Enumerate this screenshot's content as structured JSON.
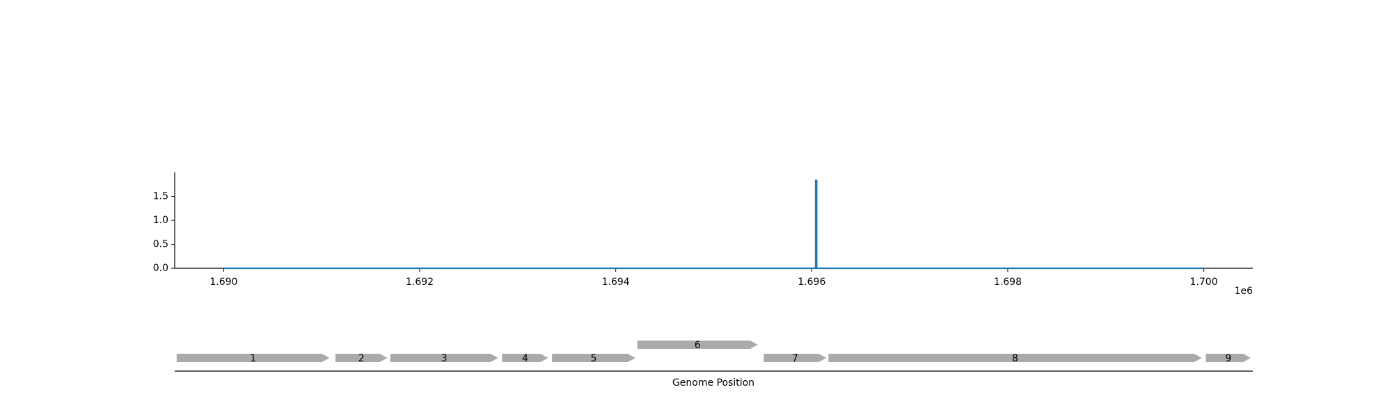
{
  "chart_data": [
    {
      "type": "line",
      "title": "",
      "xlabel": "",
      "ylabel": "",
      "x_offset_label": "1e6",
      "xlim": [
        1689500,
        1700500
      ],
      "ylim": [
        0,
        2.0
      ],
      "x_ticks": [
        1690000,
        1692000,
        1694000,
        1696000,
        1698000,
        1700000
      ],
      "x_tick_labels": [
        "1.690",
        "1.692",
        "1.694",
        "1.696",
        "1.698",
        "1.700"
      ],
      "y_ticks": [
        0,
        0.5,
        1.0,
        1.5
      ],
      "y_tick_labels": [
        "0.0",
        "0.5",
        "1.0",
        "1.5"
      ],
      "grid": false,
      "colors": {
        "line": "#1f77b4"
      },
      "series": [
        {
          "points": [
            [
              1690000,
              0
            ],
            [
              1696040,
              0
            ],
            [
              1696040,
              1.83
            ],
            [
              1696050,
              1.83
            ],
            [
              1696050,
              0
            ],
            [
              1700000,
              0
            ]
          ]
        }
      ]
    },
    {
      "type": "gene-track",
      "xlabel": "Genome Position",
      "xlim": [
        1689500,
        1700500
      ],
      "colors": {
        "gene": "#aaaaaa"
      },
      "genes": [
        {
          "label": "1",
          "start": 1689520,
          "end": 1691080,
          "row": 0,
          "strand": "+"
        },
        {
          "label": "2",
          "start": 1691140,
          "end": 1691670,
          "row": 0,
          "strand": "+"
        },
        {
          "label": "3",
          "start": 1691700,
          "end": 1692800,
          "row": 0,
          "strand": "+"
        },
        {
          "label": "4",
          "start": 1692840,
          "end": 1693310,
          "row": 0,
          "strand": "+"
        },
        {
          "label": "5",
          "start": 1693350,
          "end": 1694200,
          "row": 0,
          "strand": "+"
        },
        {
          "label": "6",
          "start": 1694220,
          "end": 1695450,
          "row": 1,
          "strand": "+"
        },
        {
          "label": "7",
          "start": 1695510,
          "end": 1696150,
          "row": 0,
          "strand": "+"
        },
        {
          "label": "8",
          "start": 1696170,
          "end": 1699980,
          "row": 0,
          "strand": "+"
        },
        {
          "label": "9",
          "start": 1700020,
          "end": 1700480,
          "row": 0,
          "strand": "+"
        }
      ]
    }
  ]
}
